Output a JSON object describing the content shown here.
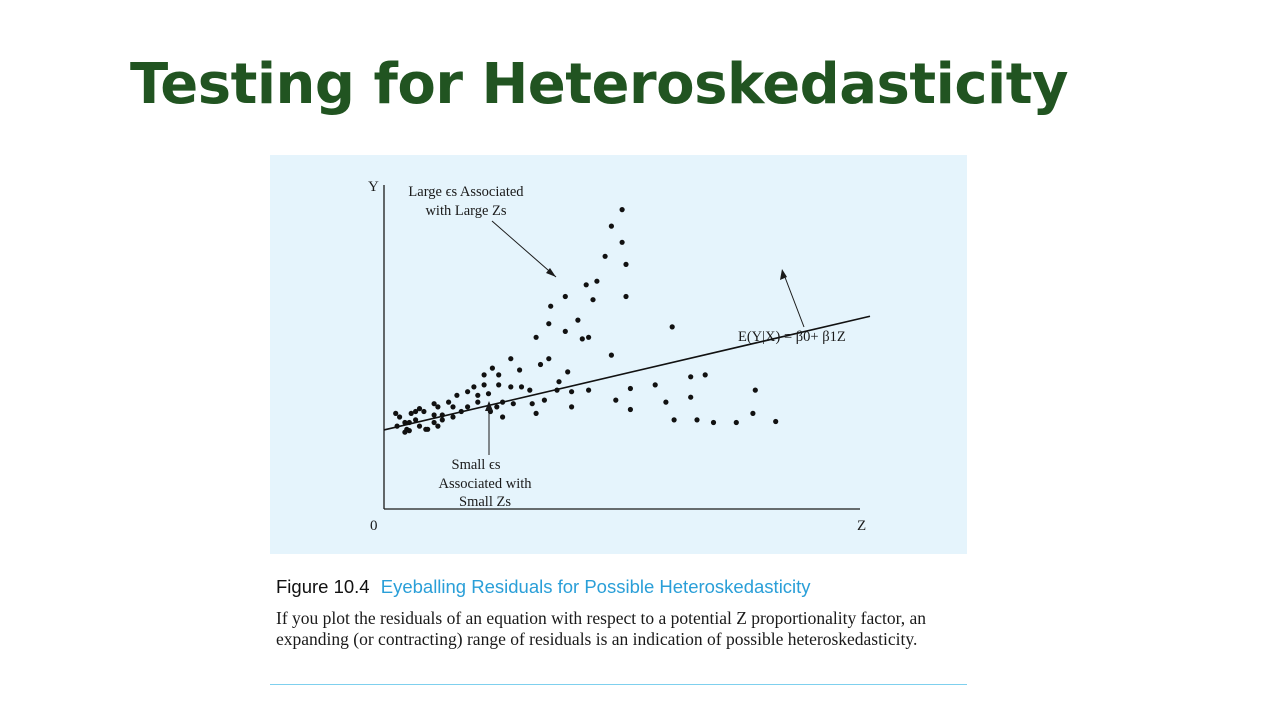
{
  "slide": {
    "title": "Testing for Heteroskedasticity"
  },
  "figure": {
    "number": "Figure 10.4",
    "title": "Eyeballing Residuals for Possible Heteroskedasticity",
    "description": "If you plot the residuals of an equation with respect to a potential Z proportionality factor, an expanding (or contracting) range of residuals is an indication of possible heteroskedasticity.",
    "colors": {
      "panel_background": "#e5f4fc",
      "title_green": "#215421",
      "caption_blue": "#2a9fd8",
      "rule_blue": "#7fd0ee"
    }
  },
  "chart_data": {
    "type": "scatter",
    "title": "",
    "xlabel": "Z",
    "ylabel": "Y",
    "origin_label": "0",
    "xlim": [
      0,
      100
    ],
    "ylim": [
      0,
      100
    ],
    "grid": false,
    "points": [
      [
        2.4,
        29.5
      ],
      [
        3.2,
        28.4
      ],
      [
        2.7,
        25.6
      ],
      [
        4.3,
        26.7
      ],
      [
        5.2,
        26.7
      ],
      [
        4.7,
        24.6
      ],
      [
        5.6,
        29.5
      ],
      [
        4.3,
        23.7
      ],
      [
        5.2,
        24.2
      ],
      [
        6.5,
        30.1
      ],
      [
        7.3,
        31.0
      ],
      [
        8.2,
        30.1
      ],
      [
        6.5,
        27.5
      ],
      [
        7.3,
        25.6
      ],
      [
        8.6,
        24.6
      ],
      [
        9.0,
        24.6
      ],
      [
        10.3,
        32.5
      ],
      [
        10.3,
        29.0
      ],
      [
        11.1,
        31.5
      ],
      [
        12.0,
        29.0
      ],
      [
        10.3,
        26.7
      ],
      [
        12.0,
        27.5
      ],
      [
        11.1,
        25.6
      ],
      [
        13.3,
        33.0
      ],
      [
        14.2,
        31.5
      ],
      [
        14.2,
        28.4
      ],
      [
        15.0,
        35.1
      ],
      [
        15.9,
        30.1
      ],
      [
        17.2,
        36.2
      ],
      [
        17.2,
        31.5
      ],
      [
        18.5,
        37.7
      ],
      [
        19.3,
        35.1
      ],
      [
        19.3,
        33.0
      ],
      [
        20.6,
        41.4
      ],
      [
        20.6,
        38.3
      ],
      [
        21.5,
        35.6
      ],
      [
        22.3,
        43.5
      ],
      [
        23.6,
        41.4
      ],
      [
        23.6,
        38.3
      ],
      [
        21.9,
        30.1
      ],
      [
        23.2,
        31.5
      ],
      [
        24.4,
        33.0
      ],
      [
        24.4,
        28.4
      ],
      [
        26.1,
        46.4
      ],
      [
        26.1,
        37.7
      ],
      [
        26.6,
        32.5
      ],
      [
        27.9,
        42.9
      ],
      [
        28.3,
        37.7
      ],
      [
        30.0,
        36.7
      ],
      [
        30.5,
        32.5
      ],
      [
        31.3,
        53.0
      ],
      [
        32.2,
        44.6
      ],
      [
        33.0,
        33.6
      ],
      [
        31.3,
        29.5
      ],
      [
        34.3,
        62.6
      ],
      [
        33.9,
        57.2
      ],
      [
        33.9,
        46.4
      ],
      [
        36.0,
        39.3
      ],
      [
        35.6,
        36.7
      ],
      [
        37.3,
        65.6
      ],
      [
        37.3,
        54.8
      ],
      [
        37.8,
        42.3
      ],
      [
        38.6,
        36.2
      ],
      [
        38.6,
        31.5
      ],
      [
        39.9,
        58.3
      ],
      [
        40.8,
        52.5
      ],
      [
        41.6,
        69.2
      ],
      [
        42.1,
        53.0
      ],
      [
        42.1,
        36.7
      ],
      [
        43.8,
        70.3
      ],
      [
        43.0,
        64.6
      ],
      [
        45.5,
        78.0
      ],
      [
        46.8,
        87.3
      ],
      [
        49.0,
        92.4
      ],
      [
        46.8,
        47.5
      ],
      [
        47.7,
        33.6
      ],
      [
        49.0,
        82.3
      ],
      [
        49.8,
        75.5
      ],
      [
        49.8,
        65.6
      ],
      [
        50.7,
        37.2
      ],
      [
        50.7,
        30.7
      ],
      [
        55.8,
        38.3
      ],
      [
        58.0,
        33.0
      ],
      [
        59.3,
        56.2
      ],
      [
        59.7,
        27.5
      ],
      [
        63.1,
        40.8
      ],
      [
        63.1,
        34.5
      ],
      [
        64.4,
        27.5
      ],
      [
        66.1,
        41.4
      ],
      [
        67.8,
        26.7
      ],
      [
        72.5,
        26.7
      ],
      [
        76.4,
        36.7
      ],
      [
        75.9,
        29.5
      ],
      [
        80.6,
        27.0
      ]
    ],
    "regression_line": {
      "label_text": "E(Y|X) = β0+ β1Z",
      "from": [
        0,
        24.4
      ],
      "to": [
        100,
        59.5
      ]
    },
    "annotations": [
      {
        "line1": "Large  ϵs Associated",
        "line2": "with Large Zs",
        "points_to": "spread of residuals at large Z"
      },
      {
        "line1": "Small  ϵs",
        "line2": "Associated with",
        "line3": "Small Zs",
        "points_to": "spread of residuals at small Z"
      }
    ]
  }
}
